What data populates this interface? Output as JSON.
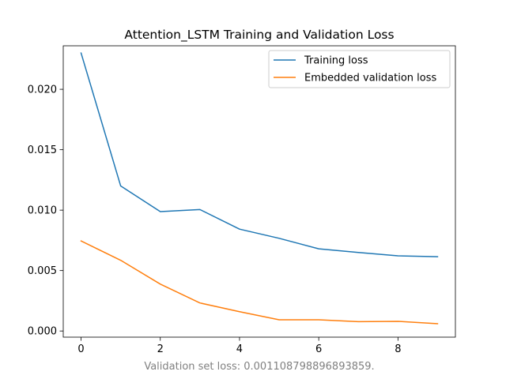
{
  "chart_data": {
    "type": "line",
    "title": "Attention_LSTM Training and Validation Loss",
    "xlabel": "",
    "ylabel": "",
    "x": [
      0,
      1,
      2,
      3,
      4,
      5,
      6,
      7,
      8,
      9
    ],
    "xlim": [
      -0.45,
      9.45
    ],
    "ylim": [
      -0.00051,
      0.0236
    ],
    "x_ticks": [
      0,
      2,
      4,
      6,
      8
    ],
    "x_tick_labels": [
      "0",
      "2",
      "4",
      "6",
      "8"
    ],
    "y_ticks": [
      0.0,
      0.005,
      0.01,
      0.015,
      0.02
    ],
    "y_tick_labels": [
      "0.000",
      "0.005",
      "0.010",
      "0.015",
      "0.020"
    ],
    "grid": false,
    "legend_position": "upper-right",
    "series": [
      {
        "name": "Training loss",
        "color": "#1f77b4",
        "values": [
          0.023,
          0.012,
          0.00988,
          0.01005,
          0.00843,
          0.00767,
          0.0068,
          0.0065,
          0.00622,
          0.00615
        ]
      },
      {
        "name": "Embedded validation loss",
        "color": "#ff7f0e",
        "values": [
          0.00745,
          0.00585,
          0.00388,
          0.00232,
          0.0016,
          0.00093,
          0.00093,
          0.00077,
          0.0008,
          0.0006
        ]
      }
    ],
    "footnote": "Validation set loss: 0.001108798896893859."
  }
}
